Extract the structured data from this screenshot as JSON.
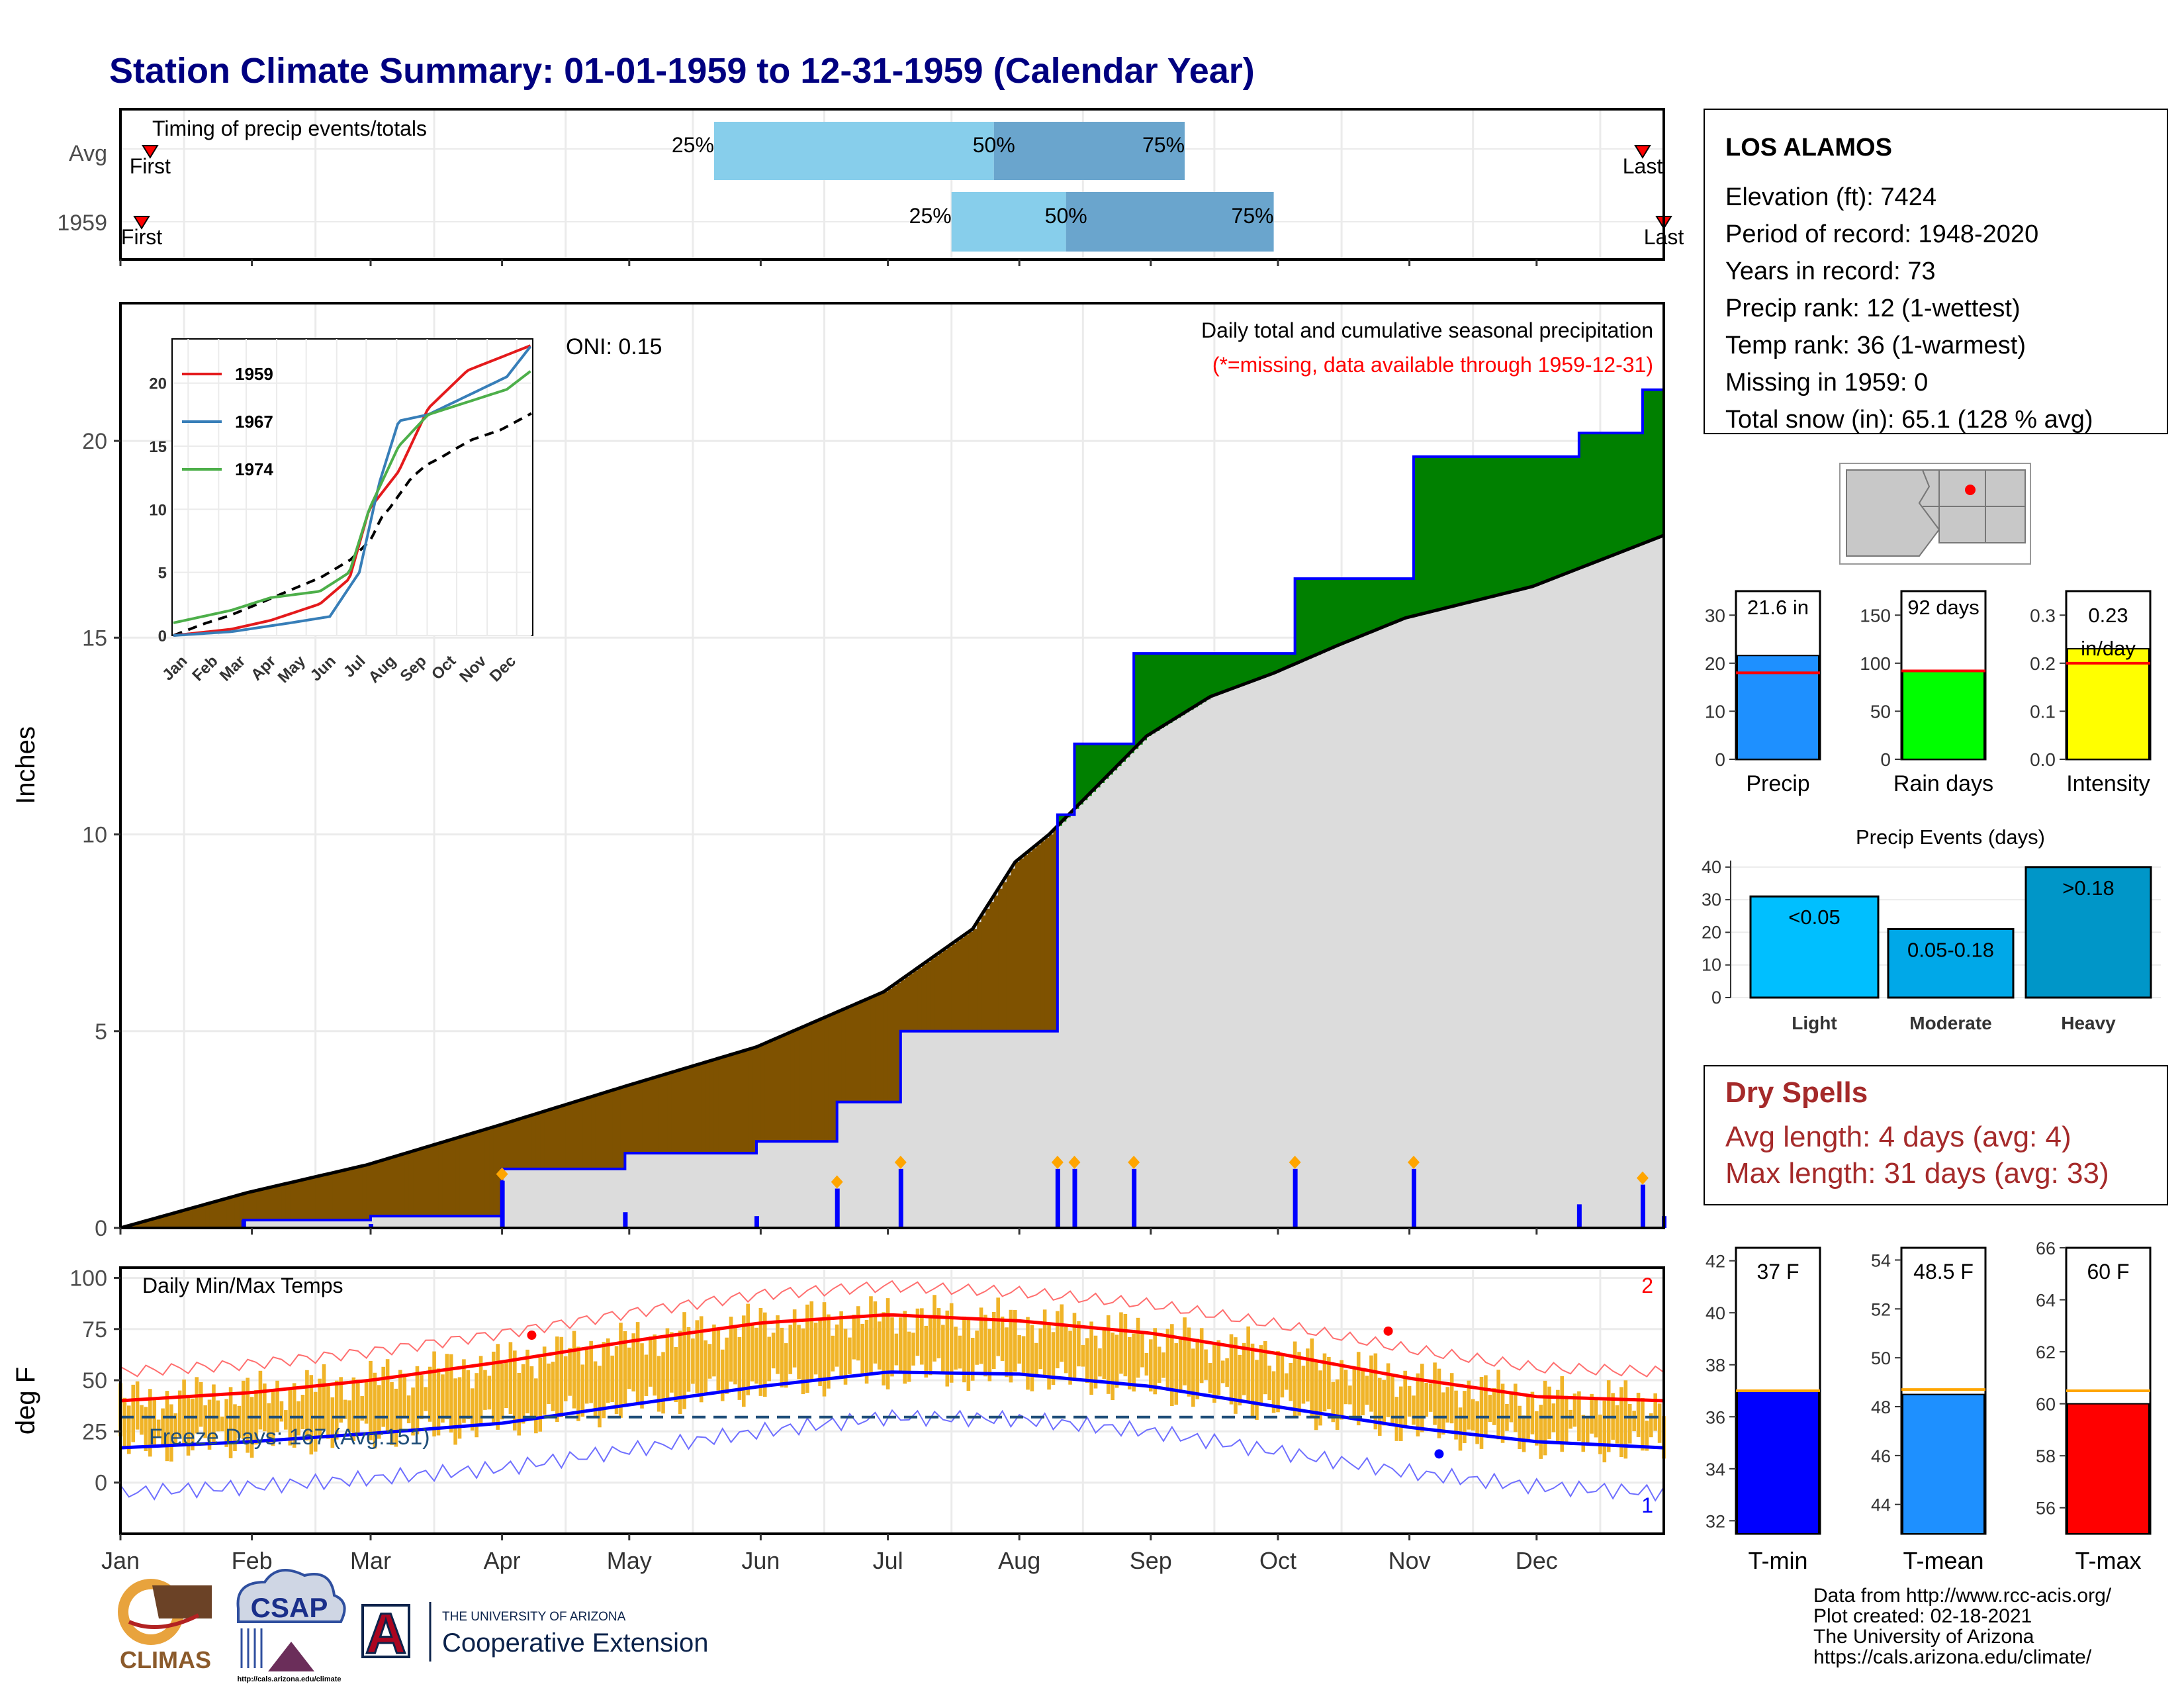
{
  "title": "Station Climate Summary: 01-01-1959 to 12-31-1959 (Calendar Year)",
  "months": [
    "Jan",
    "Feb",
    "Mar",
    "Apr",
    "May",
    "Jun",
    "Jul",
    "Aug",
    "Sep",
    "Oct",
    "Nov",
    "Dec"
  ],
  "colors": {
    "title": "#000080",
    "accent_red": "#ff0000",
    "dry_spell": "#a52a2a",
    "above_normal": "#008000",
    "below_normal": "#7f5200",
    "climo_fill": "#dcdcdc",
    "light_blue": "#87ceeb",
    "mid_blue": "#6aa5cd",
    "precip_blue": "#1e90ff",
    "rain_green": "#00ff00",
    "intensity_yellow": "#ffff00",
    "tmin_blue": "#0000ff",
    "tmax_red": "#ff0000",
    "temp_bar": "#f0b428"
  },
  "timing_panel": {
    "label": "Timing of precip events/totals",
    "rows": [
      {
        "name": "Avg",
        "first_label": "First",
        "last_label": "Last",
        "first_doy": 8,
        "last_doy": 360,
        "p25_label": "25%",
        "p50_label": "50%",
        "p75_label": "75%",
        "p25": 141,
        "p50": 207,
        "p75": 252
      },
      {
        "name": "1959",
        "first_label": "First",
        "last_label": "Last",
        "first_doy": 6,
        "last_doy": 365,
        "p25_label": "25%",
        "p50_label": "50%",
        "p75_label": "75%",
        "p25": 197,
        "p50": 224,
        "p75": 273
      }
    ]
  },
  "precip_panel": {
    "ylabel": "Inches",
    "title": "Daily total and cumulative seasonal precipitation",
    "missing_note": "(*=missing, data available through 1959-12-31)",
    "oni_label": "ONI: 0.15",
    "yticks": [
      "0",
      "5",
      "10",
      "15",
      "20"
    ]
  },
  "inset": {
    "series": [
      {
        "name": "1959",
        "color": "#e41a1c"
      },
      {
        "name": "1967",
        "color": "#377eb8"
      },
      {
        "name": "1974",
        "color": "#4daf4a"
      }
    ],
    "yticks": [
      "0",
      "5",
      "10",
      "15",
      "20"
    ],
    "xticks": [
      "Jan",
      "Feb",
      "Mar",
      "Apr",
      "May",
      "Jun",
      "Jul",
      "Aug",
      "Sep",
      "Oct",
      "Nov",
      "Dec"
    ]
  },
  "temp_panel": {
    "ylabel": "deg F",
    "label": "Daily Min/Max Temps",
    "freeze_label": "Freeze Days: 167 (Avg:151)",
    "record_high_count": "2",
    "record_low_count": "1",
    "yticks": [
      "0",
      "25",
      "50",
      "75",
      "100"
    ]
  },
  "station": {
    "name": "LOS ALAMOS",
    "lines": [
      "Elevation (ft): 7424",
      "Period of record: 1948-2020",
      "Years in record: 73",
      "Precip rank: 12 (1-wettest)",
      "Temp rank: 36 (1-warmest)",
      "Missing in 1959: 0",
      "Total snow (in): 65.1 (128 % avg)"
    ]
  },
  "stat_bars": [
    {
      "label": "Precip",
      "value_label": "21.6 in",
      "value": 21.6,
      "avg": 18,
      "ymax": 35,
      "ticks": [
        "0",
        "10",
        "20",
        "30"
      ],
      "color": "#1e90ff"
    },
    {
      "label": "Rain days",
      "value_label": "92 days",
      "value": 92,
      "avg": 92,
      "ymax": 175,
      "ticks": [
        "0",
        "50",
        "100",
        "150"
      ],
      "color": "#00ff00"
    },
    {
      "label": "Intensity",
      "value_label": "0.23 in/day",
      "value": 0.23,
      "avg": 0.2,
      "ymax": 0.35,
      "ticks": [
        "0.0",
        "0.1",
        "0.2",
        "0.3"
      ],
      "color": "#ffff00"
    }
  ],
  "precip_events": {
    "title": "Precip Events (days)",
    "yticks": [
      "0",
      "10",
      "20",
      "30",
      "40"
    ],
    "bars": [
      {
        "label": "Light",
        "inner": "<0.05",
        "value": 31,
        "color": "#00bfff"
      },
      {
        "label": "Moderate",
        "inner": "0.05-0.18",
        "value": 21,
        "color": "#00a8e8"
      },
      {
        "label": "Heavy",
        "inner": ">0.18",
        "value": 40,
        "color": "#0096c8"
      }
    ]
  },
  "dry_spells": {
    "title": "Dry Spells",
    "avg_length": "Avg length: 4 days (avg: 4)",
    "max_length": "Max length: 31 days (avg: 33)"
  },
  "temp_bars": [
    {
      "label": "T-min",
      "value_label": "37 F",
      "value": 37,
      "avg": 37,
      "ymin": 31.5,
      "ymax": 42.5,
      "ticks": [
        "32",
        "34",
        "36",
        "38",
        "40",
        "42"
      ],
      "color": "#0000ff"
    },
    {
      "label": "T-mean",
      "value_label": "48.5 F",
      "value": 48.5,
      "avg": 48.7,
      "ymin": 42.8,
      "ymax": 54.5,
      "ticks": [
        "44",
        "46",
        "48",
        "50",
        "52",
        "54"
      ],
      "color": "#1e90ff"
    },
    {
      "label": "T-max",
      "value_label": "60 F",
      "value": 60,
      "avg": 60.5,
      "ymin": 55,
      "ymax": 66,
      "ticks": [
        "56",
        "58",
        "60",
        "62",
        "64",
        "66"
      ],
      "color": "#ff0000"
    }
  ],
  "logos": {
    "climas": "CLIMAS",
    "csap": "CSAP",
    "csap_url": "http://cals.arizona.edu/climate",
    "ua_small": "THE UNIVERSITY OF ARIZONA",
    "coop_ext": "Cooperative Extension",
    "ua_letter": "A"
  },
  "credits": [
    "Data from http://www.rcc-acis.org/",
    "Plot created: 02-18-2021",
    "The University of Arizona",
    "https://cals.arizona.edu/climate/"
  ],
  "chart_data": {
    "type": "area",
    "title": "Daily total and cumulative seasonal precipitation",
    "ylabel": "Inches",
    "ylim": [
      0,
      23.5
    ],
    "xlim": [
      1,
      365
    ],
    "series": [
      {
        "name": "1959",
        "points": [
          [
            1,
            0
          ],
          [
            30,
            0.2
          ],
          [
            60,
            0.3
          ],
          [
            91,
            1.5
          ],
          [
            120,
            1.9
          ],
          [
            151,
            2.2
          ],
          [
            170,
            3.2
          ],
          [
            185,
            5.0
          ],
          [
            210,
            5.0
          ],
          [
            222,
            10.5
          ],
          [
            226,
            12.3
          ],
          [
            240,
            14.6
          ],
          [
            274,
            14.6
          ],
          [
            278,
            16.5
          ],
          [
            302,
            16.5
          ],
          [
            306,
            19.6
          ],
          [
            345,
            20.2
          ],
          [
            360,
            21.3
          ],
          [
            365,
            21.6
          ]
        ]
      },
      {
        "name": "climatology",
        "points": [
          [
            1,
            0
          ],
          [
            31,
            0.9
          ],
          [
            59,
            1.6
          ],
          [
            90,
            2.6
          ],
          [
            120,
            3.6
          ],
          [
            151,
            4.6
          ],
          [
            181,
            6.0
          ],
          [
            202,
            7.6
          ],
          [
            212,
            9.3
          ],
          [
            220,
            10.0
          ],
          [
            243,
            12.5
          ],
          [
            258,
            13.5
          ],
          [
            273,
            14.1
          ],
          [
            288,
            14.8
          ],
          [
            304,
            15.5
          ],
          [
            334,
            16.3
          ],
          [
            365,
            17.6
          ]
        ]
      }
    ],
    "inset_series": [
      {
        "name": "1959",
        "points": [
          [
            1,
            0
          ],
          [
            60,
            0.5
          ],
          [
            100,
            1.2
          ],
          [
            150,
            2.5
          ],
          [
            180,
            4.5
          ],
          [
            200,
            10.0
          ],
          [
            230,
            13.0
          ],
          [
            260,
            18.0
          ],
          [
            300,
            21.0
          ],
          [
            365,
            23.0
          ]
        ]
      },
      {
        "name": "1967",
        "points": [
          [
            1,
            0
          ],
          [
            60,
            0.3
          ],
          [
            120,
            1.0
          ],
          [
            160,
            1.5
          ],
          [
            190,
            5.0
          ],
          [
            210,
            12.0
          ],
          [
            230,
            17.0
          ],
          [
            260,
            17.5
          ],
          [
            300,
            19.0
          ],
          [
            340,
            20.5
          ],
          [
            365,
            23.0
          ]
        ]
      },
      {
        "name": "1974",
        "points": [
          [
            1,
            1.0
          ],
          [
            60,
            2.0
          ],
          [
            100,
            3.0
          ],
          [
            150,
            3.5
          ],
          [
            180,
            5.0
          ],
          [
            200,
            10.0
          ],
          [
            230,
            15.0
          ],
          [
            260,
            17.5
          ],
          [
            300,
            18.5
          ],
          [
            340,
            19.5
          ],
          [
            365,
            21.0
          ]
        ]
      }
    ],
    "temperature": {
      "ylim": [
        -25,
        105
      ],
      "freeze_line": 32,
      "tmax_avg": [
        [
          1,
          40
        ],
        [
          32,
          44
        ],
        [
          60,
          50
        ],
        [
          91,
          59
        ],
        [
          121,
          69
        ],
        [
          152,
          78
        ],
        [
          182,
          82
        ],
        [
          213,
          79
        ],
        [
          244,
          73
        ],
        [
          274,
          63
        ],
        [
          305,
          51
        ],
        [
          335,
          42
        ],
        [
          365,
          40
        ]
      ],
      "tmin_avg": [
        [
          1,
          17
        ],
        [
          32,
          20
        ],
        [
          60,
          24
        ],
        [
          91,
          29
        ],
        [
          121,
          38
        ],
        [
          152,
          47
        ],
        [
          182,
          54
        ],
        [
          213,
          53
        ],
        [
          244,
          47
        ],
        [
          274,
          37
        ],
        [
          305,
          27
        ],
        [
          335,
          20
        ],
        [
          365,
          17
        ]
      ]
    }
  }
}
